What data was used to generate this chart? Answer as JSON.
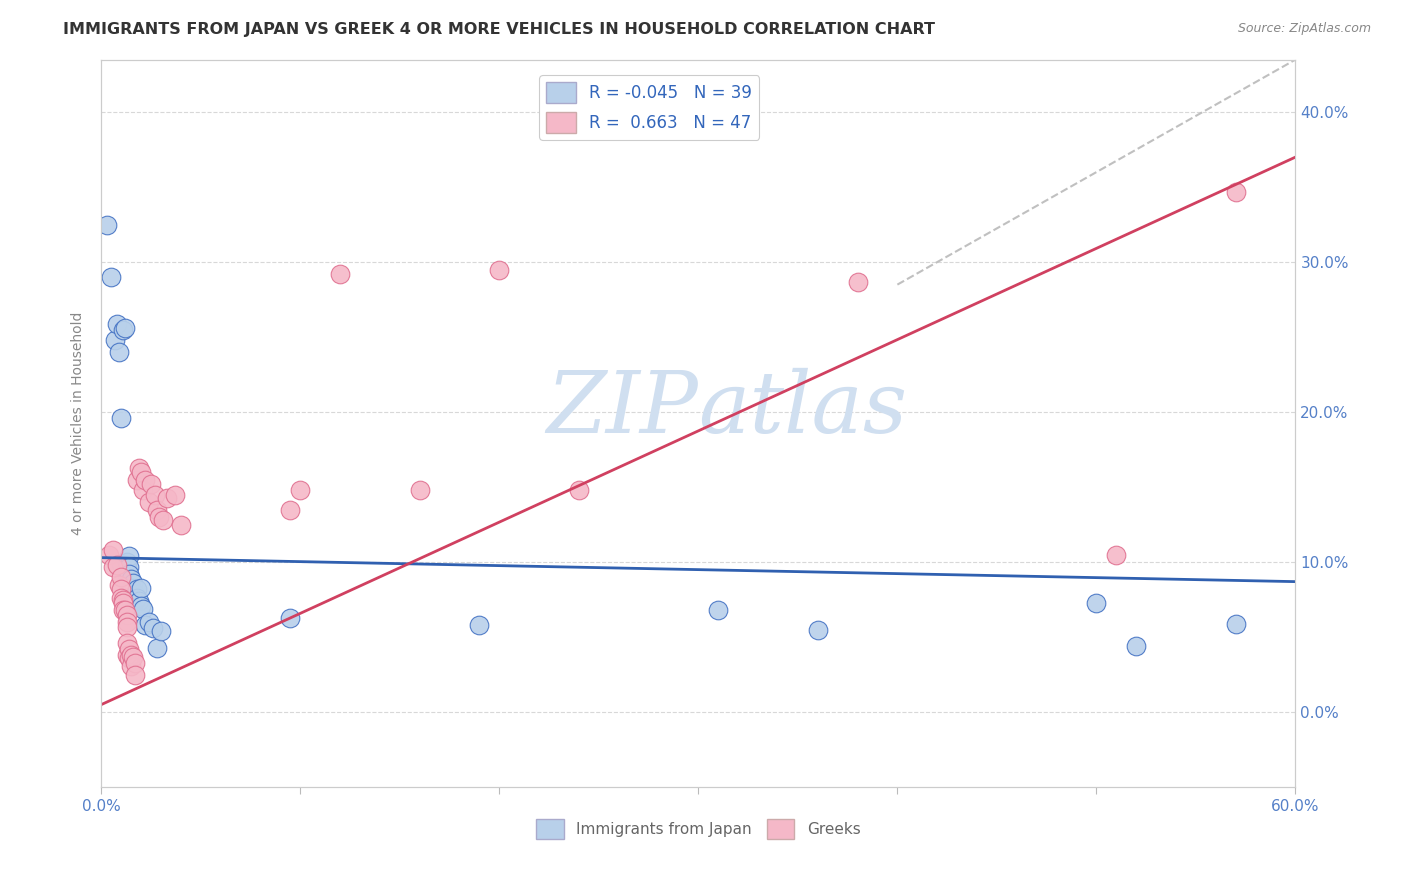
{
  "title": "IMMIGRANTS FROM JAPAN VS GREEK 4 OR MORE VEHICLES IN HOUSEHOLD CORRELATION CHART",
  "source": "Source: ZipAtlas.com",
  "ylabel": "4 or more Vehicles in Household",
  "legend_japan_R": "-0.045",
  "legend_japan_N": "39",
  "legend_greek_R": "0.663",
  "legend_greek_N": "47",
  "japan_fill_color": "#b8d0ea",
  "greek_fill_color": "#f5b8c8",
  "japan_edge_color": "#4472c4",
  "greek_edge_color": "#e07090",
  "japan_line_color": "#3060b0",
  "greek_line_color": "#d04060",
  "ext_line_color": "#c0c0c0",
  "background_color": "#ffffff",
  "watermark_color": "#d0dff0",
  "xlim": [
    0.0,
    0.6
  ],
  "ylim": [
    -0.05,
    0.435
  ],
  "yticks": [
    0.0,
    0.1,
    0.2,
    0.3,
    0.4
  ],
  "ytick_labels": [
    "0.0%",
    "10.0%",
    "20.0%",
    "30.0%",
    "40.0%"
  ],
  "japan_line_x0": 0.0,
  "japan_line_y0": 0.103,
  "japan_line_x1": 0.6,
  "japan_line_y1": 0.087,
  "greek_line_x0": 0.0,
  "greek_line_y0": 0.005,
  "greek_line_x1": 0.6,
  "greek_line_y1": 0.37,
  "ext_line_x0": 0.4,
  "ext_line_y0": 0.285,
  "ext_line_x1": 0.6,
  "ext_line_y1": 0.435,
  "japan_scatter": [
    [
      0.003,
      0.325
    ],
    [
      0.005,
      0.29
    ],
    [
      0.007,
      0.248
    ],
    [
      0.008,
      0.259
    ],
    [
      0.009,
      0.24
    ],
    [
      0.01,
      0.196
    ],
    [
      0.01,
      0.099
    ],
    [
      0.011,
      0.255
    ],
    [
      0.012,
      0.256
    ],
    [
      0.013,
      0.1
    ],
    [
      0.013,
      0.096
    ],
    [
      0.013,
      0.089
    ],
    [
      0.014,
      0.104
    ],
    [
      0.014,
      0.097
    ],
    [
      0.014,
      0.092
    ],
    [
      0.015,
      0.089
    ],
    [
      0.015,
      0.083
    ],
    [
      0.016,
      0.086
    ],
    [
      0.016,
      0.078
    ],
    [
      0.017,
      0.079
    ],
    [
      0.017,
      0.074
    ],
    [
      0.018,
      0.082
    ],
    [
      0.018,
      0.076
    ],
    [
      0.019,
      0.074
    ],
    [
      0.02,
      0.083
    ],
    [
      0.02,
      0.071
    ],
    [
      0.021,
      0.069
    ],
    [
      0.022,
      0.058
    ],
    [
      0.024,
      0.06
    ],
    [
      0.026,
      0.056
    ],
    [
      0.028,
      0.043
    ],
    [
      0.03,
      0.054
    ],
    [
      0.095,
      0.063
    ],
    [
      0.19,
      0.058
    ],
    [
      0.31,
      0.068
    ],
    [
      0.36,
      0.055
    ],
    [
      0.5,
      0.073
    ],
    [
      0.52,
      0.044
    ],
    [
      0.57,
      0.059
    ]
  ],
  "greek_scatter": [
    [
      0.004,
      0.105
    ],
    [
      0.006,
      0.108
    ],
    [
      0.006,
      0.097
    ],
    [
      0.008,
      0.098
    ],
    [
      0.009,
      0.085
    ],
    [
      0.01,
      0.09
    ],
    [
      0.01,
      0.082
    ],
    [
      0.01,
      0.076
    ],
    [
      0.011,
      0.075
    ],
    [
      0.011,
      0.073
    ],
    [
      0.011,
      0.068
    ],
    [
      0.012,
      0.068
    ],
    [
      0.013,
      0.065
    ],
    [
      0.013,
      0.06
    ],
    [
      0.013,
      0.057
    ],
    [
      0.013,
      0.046
    ],
    [
      0.013,
      0.038
    ],
    [
      0.014,
      0.042
    ],
    [
      0.014,
      0.036
    ],
    [
      0.015,
      0.038
    ],
    [
      0.015,
      0.031
    ],
    [
      0.016,
      0.037
    ],
    [
      0.017,
      0.033
    ],
    [
      0.017,
      0.025
    ],
    [
      0.018,
      0.155
    ],
    [
      0.019,
      0.163
    ],
    [
      0.02,
      0.16
    ],
    [
      0.021,
      0.148
    ],
    [
      0.022,
      0.155
    ],
    [
      0.024,
      0.14
    ],
    [
      0.025,
      0.152
    ],
    [
      0.027,
      0.145
    ],
    [
      0.028,
      0.135
    ],
    [
      0.029,
      0.13
    ],
    [
      0.031,
      0.128
    ],
    [
      0.033,
      0.143
    ],
    [
      0.037,
      0.145
    ],
    [
      0.04,
      0.125
    ],
    [
      0.095,
      0.135
    ],
    [
      0.1,
      0.148
    ],
    [
      0.12,
      0.292
    ],
    [
      0.16,
      0.148
    ],
    [
      0.2,
      0.295
    ],
    [
      0.24,
      0.148
    ],
    [
      0.38,
      0.287
    ],
    [
      0.51,
      0.105
    ],
    [
      0.57,
      0.347
    ]
  ]
}
